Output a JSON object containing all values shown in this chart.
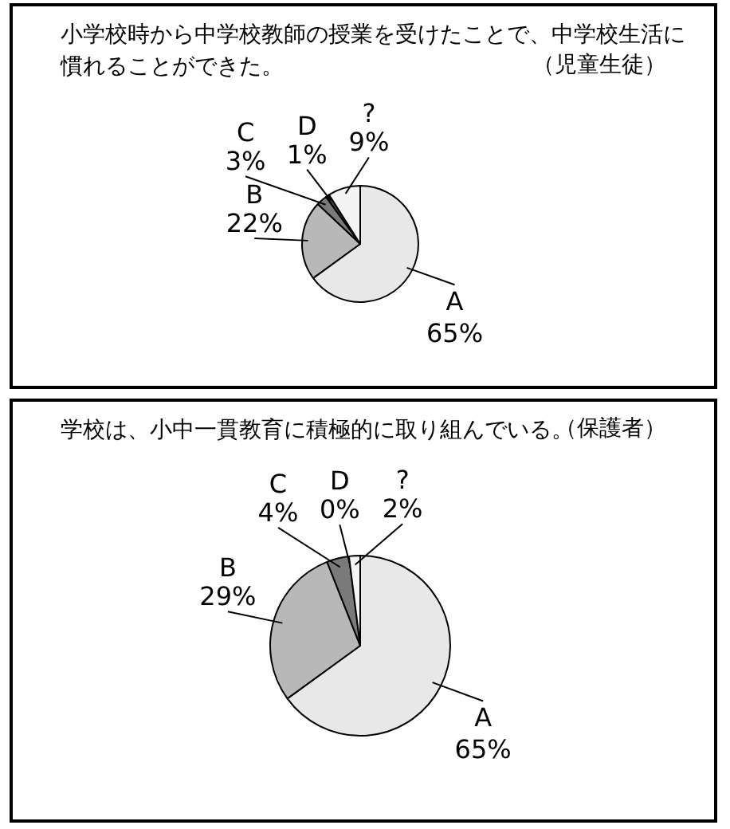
{
  "chart_data": [
    {
      "type": "pie",
      "title": "小学校時から中学校教師の授業を受けたことで、中学校生活に慣れることができた。",
      "subtitle": "（児童生徒）",
      "categories": [
        "A",
        "B",
        "C",
        "D",
        "?"
      ],
      "values": [
        65,
        22,
        3,
        1,
        9
      ],
      "value_labels": [
        "65%",
        "22%",
        "3%",
        "1%",
        "9%"
      ],
      "colors": [
        "#e8e8e8",
        "#b8b8b8",
        "#7a7a7a",
        "#444444",
        "#f4f4f4"
      ],
      "legend": false
    },
    {
      "type": "pie",
      "title": "学校は、小中一貫教育に積極的に取り組んでいる。",
      "subtitle": "（保護者）",
      "categories": [
        "A",
        "B",
        "C",
        "D",
        "?"
      ],
      "values": [
        65,
        29,
        4,
        0,
        2
      ],
      "value_labels": [
        "65%",
        "29%",
        "4%",
        "0%",
        "2%"
      ],
      "colors": [
        "#e8e8e8",
        "#b8b8b8",
        "#7a7a7a",
        "#444444",
        "#f4f4f4"
      ],
      "legend": false
    }
  ]
}
